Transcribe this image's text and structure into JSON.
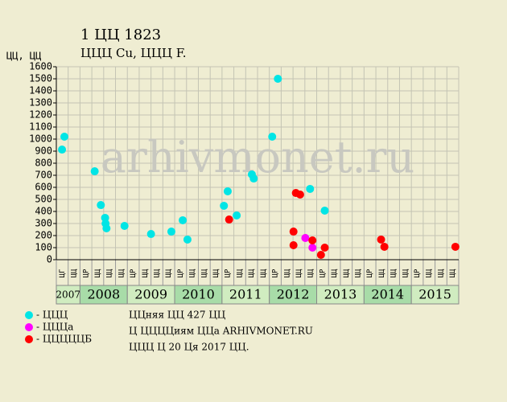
{
  "chart_data": {
    "type": "scatter",
    "title": "1 ЦЦ 1823",
    "subtitle": "ЦЦЦ Cu, ЦЦЦ F.",
    "y_label": "ЦЦ, ЦЦ",
    "watermark": "arhivmonet.ru",
    "xlim": [
      2007.5,
      2016
    ],
    "xticks": [
      2007.5,
      2007.75,
      2008,
      2008.25,
      2008.5,
      2008.75,
      2009,
      2009.25,
      2009.5,
      2009.75,
      2010,
      2010.25,
      2010.5,
      2010.75,
      2011,
      2011.25,
      2011.5,
      2011.75,
      2012,
      2012.25,
      2012.5,
      2012.75,
      2013,
      2013.25,
      2013.5,
      2013.75,
      2014,
      2014.25,
      2014.5,
      2014.75,
      2015,
      2015.25,
      2015.5,
      2015.75,
      2016
    ],
    "column_labels": [
      "ЦГ",
      "ЦЦ",
      "ЦР",
      "ЦЦ",
      "ЦЦ",
      "ЦЦ",
      "ЦР",
      "ЦЦ",
      "ЦЦ",
      "ЦЦ",
      "ЦР",
      "ЦЦ",
      "ЦЦ",
      "ЦЦ",
      "ЦР",
      "ЦЦ",
      "ЦЦ",
      "ЦЦ",
      "ЦР",
      "ЦЦ",
      "ЦЦ",
      "ЦЦ",
      "ЦР",
      "ЦЦ",
      "ЦЦ",
      "ЦЦ",
      "ЦР",
      "ЦЦ",
      "ЦЦ",
      "ЦЦ",
      "ЦР",
      "ЦЦ",
      "ЦЦ",
      "ЦЦ"
    ],
    "year_labels": [
      "2007",
      "2008",
      "2009",
      "2010",
      "2011",
      "2012",
      "2013",
      "2014",
      "2015"
    ],
    "ylim": [
      0,
      1600
    ],
    "yticks": [
      0,
      100,
      200,
      300,
      400,
      500,
      600,
      700,
      800,
      900,
      1000,
      1100,
      1200,
      1300,
      1400,
      1500,
      1600
    ],
    "grid": true,
    "series": [
      {
        "name": "- ЦЦЦ",
        "color": "#00e5e5",
        "x": [
          2007.62,
          2007.67,
          2008.31,
          2008.44,
          2008.53,
          2008.54,
          2008.56,
          2008.94,
          2009.5,
          2009.93,
          2010.17,
          2010.27,
          2011.04,
          2011.12,
          2011.31,
          2011.63,
          2011.67,
          2012.06,
          2012.18,
          2012.86,
          2013.17
        ],
        "values": [
          913,
          1020,
          733,
          453,
          347,
          300,
          260,
          280,
          213,
          233,
          327,
          167,
          447,
          567,
          367,
          707,
          673,
          1020,
          1500,
          587,
          407
        ]
      },
      {
        "name": "- ЦЦЦа",
        "color": "#ff00ff",
        "x": [
          2012.76,
          2012.91
        ],
        "values": [
          180,
          100
        ]
      },
      {
        "name": "- ЦЦЦЦЦБ",
        "color": "#ff0000",
        "x": [
          2011.15,
          2012.51,
          2012.51,
          2012.56,
          2012.65,
          2012.91,
          2013.09,
          2013.17,
          2014.36,
          2014.43,
          2015.93
        ],
        "values": [
          333,
          233,
          120,
          553,
          540,
          160,
          40,
          100,
          167,
          107,
          107
        ]
      }
    ],
    "info": [
      "ЦЦняя ЦЦ 427 ЦЦ",
      "Ц ЦЦЦЦиям ЦЦа ARHIVMONET.RU",
      "ЦЦЦ Ц 20 Ця 2017 ЦЦ."
    ]
  }
}
